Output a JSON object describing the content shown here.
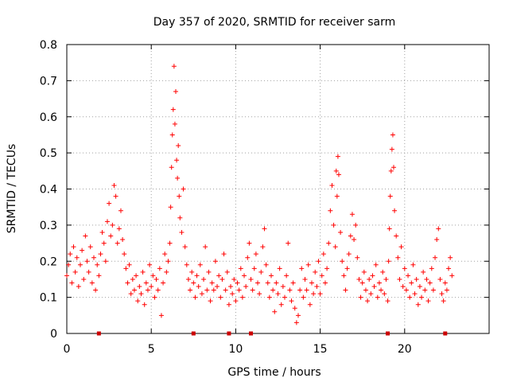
{
  "chart_data": {
    "type": "scatter",
    "title": "Day 357 of 2020, SRMTID for receiver sarm",
    "xlabel": "GPS time / hours",
    "ylabel": "SRMTID / TECUs",
    "xlim": [
      0,
      25
    ],
    "ylim": [
      0,
      0.8
    ],
    "x_ticks": [
      0,
      5,
      10,
      15,
      20
    ],
    "x_tick_labels": [
      "0",
      "5",
      "10",
      "15",
      "20"
    ],
    "y_ticks": [
      0,
      0.1,
      0.2,
      0.3,
      0.4,
      0.5,
      0.6,
      0.7,
      0.8
    ],
    "y_tick_labels": [
      "0",
      "0.1",
      "0.2",
      "0.3",
      "0.4",
      "0.5",
      "0.6",
      "0.7",
      "0.8"
    ],
    "grid": true,
    "marker": "plus",
    "series": [
      {
        "name": "SRMTID",
        "color": "#ff0000",
        "points": [
          [
            0.0,
            0.16
          ],
          [
            0.1,
            0.19
          ],
          [
            0.2,
            0.22
          ],
          [
            0.3,
            0.14
          ],
          [
            0.4,
            0.24
          ],
          [
            0.5,
            0.17
          ],
          [
            0.6,
            0.21
          ],
          [
            0.7,
            0.13
          ],
          [
            0.8,
            0.19
          ],
          [
            0.9,
            0.23
          ],
          [
            1.0,
            0.15
          ],
          [
            1.1,
            0.27
          ],
          [
            1.2,
            0.2
          ],
          [
            1.3,
            0.17
          ],
          [
            1.4,
            0.24
          ],
          [
            1.5,
            0.14
          ],
          [
            1.6,
            0.21
          ],
          [
            1.7,
            0.12
          ],
          [
            1.8,
            0.19
          ],
          [
            1.9,
            0.16
          ],
          [
            2.0,
            0.22
          ],
          [
            2.1,
            0.28
          ],
          [
            2.2,
            0.25
          ],
          [
            2.3,
            0.2
          ],
          [
            2.4,
            0.31
          ],
          [
            2.5,
            0.36
          ],
          [
            2.6,
            0.27
          ],
          [
            2.7,
            0.3
          ],
          [
            2.8,
            0.41
          ],
          [
            2.9,
            0.38
          ],
          [
            3.0,
            0.25
          ],
          [
            3.1,
            0.29
          ],
          [
            3.2,
            0.34
          ],
          [
            3.3,
            0.26
          ],
          [
            3.4,
            0.22
          ],
          [
            3.5,
            0.18
          ],
          [
            3.6,
            0.14
          ],
          [
            3.7,
            0.19
          ],
          [
            3.8,
            0.11
          ],
          [
            3.9,
            0.15
          ],
          [
            4.0,
            0.12
          ],
          [
            4.1,
            0.16
          ],
          [
            4.2,
            0.09
          ],
          [
            4.3,
            0.13
          ],
          [
            4.4,
            0.11
          ],
          [
            4.5,
            0.17
          ],
          [
            4.6,
            0.08
          ],
          [
            4.7,
            0.14
          ],
          [
            4.8,
            0.12
          ],
          [
            4.9,
            0.19
          ],
          [
            5.0,
            0.13
          ],
          [
            5.1,
            0.16
          ],
          [
            5.2,
            0.1
          ],
          [
            5.3,
            0.15
          ],
          [
            5.4,
            0.12
          ],
          [
            5.5,
            0.18
          ],
          [
            5.6,
            0.05
          ],
          [
            5.7,
            0.14
          ],
          [
            5.8,
            0.22
          ],
          [
            5.9,
            0.17
          ],
          [
            6.0,
            0.2
          ],
          [
            6.1,
            0.25
          ],
          [
            6.15,
            0.35
          ],
          [
            6.2,
            0.46
          ],
          [
            6.25,
            0.55
          ],
          [
            6.3,
            0.62
          ],
          [
            6.35,
            0.74
          ],
          [
            6.4,
            0.58
          ],
          [
            6.45,
            0.67
          ],
          [
            6.5,
            0.48
          ],
          [
            6.55,
            0.43
          ],
          [
            6.6,
            0.52
          ],
          [
            6.65,
            0.38
          ],
          [
            6.7,
            0.32
          ],
          [
            6.8,
            0.28
          ],
          [
            6.9,
            0.4
          ],
          [
            7.0,
            0.24
          ],
          [
            7.1,
            0.19
          ],
          [
            7.2,
            0.15
          ],
          [
            7.3,
            0.12
          ],
          [
            7.4,
            0.17
          ],
          [
            7.5,
            0.14
          ],
          [
            7.6,
            0.1
          ],
          [
            7.7,
            0.16
          ],
          [
            7.8,
            0.13
          ],
          [
            7.9,
            0.19
          ],
          [
            8.0,
            0.11
          ],
          [
            8.1,
            0.15
          ],
          [
            8.2,
            0.24
          ],
          [
            8.3,
            0.12
          ],
          [
            8.4,
            0.17
          ],
          [
            8.5,
            0.09
          ],
          [
            8.6,
            0.14
          ],
          [
            8.7,
            0.12
          ],
          [
            8.8,
            0.2
          ],
          [
            8.9,
            0.13
          ],
          [
            9.0,
            0.16
          ],
          [
            9.1,
            0.1
          ],
          [
            9.2,
            0.15
          ],
          [
            9.3,
            0.22
          ],
          [
            9.4,
            0.12
          ],
          [
            9.5,
            0.17
          ],
          [
            9.6,
            0.08
          ],
          [
            9.7,
            0.13
          ],
          [
            9.8,
            0.11
          ],
          [
            9.9,
            0.15
          ],
          [
            10.0,
            0.09
          ],
          [
            10.1,
            0.14
          ],
          [
            10.2,
            0.12
          ],
          [
            10.3,
            0.18
          ],
          [
            10.4,
            0.1
          ],
          [
            10.5,
            0.16
          ],
          [
            10.6,
            0.13
          ],
          [
            10.7,
            0.21
          ],
          [
            10.8,
            0.25
          ],
          [
            10.9,
            0.15
          ],
          [
            11.0,
            0.12
          ],
          [
            11.1,
            0.18
          ],
          [
            11.2,
            0.22
          ],
          [
            11.3,
            0.14
          ],
          [
            11.4,
            0.11
          ],
          [
            11.5,
            0.17
          ],
          [
            11.6,
            0.24
          ],
          [
            11.7,
            0.29
          ],
          [
            11.8,
            0.19
          ],
          [
            11.9,
            0.14
          ],
          [
            12.0,
            0.1
          ],
          [
            12.1,
            0.16
          ],
          [
            12.2,
            0.12
          ],
          [
            12.3,
            0.06
          ],
          [
            12.4,
            0.14
          ],
          [
            12.5,
            0.11
          ],
          [
            12.6,
            0.18
          ],
          [
            12.7,
            0.08
          ],
          [
            12.8,
            0.13
          ],
          [
            12.9,
            0.1
          ],
          [
            13.0,
            0.16
          ],
          [
            13.1,
            0.25
          ],
          [
            13.2,
            0.12
          ],
          [
            13.3,
            0.09
          ],
          [
            13.4,
            0.14
          ],
          [
            13.5,
            0.07
          ],
          [
            13.6,
            0.03
          ],
          [
            13.7,
            0.05
          ],
          [
            13.8,
            0.12
          ],
          [
            13.9,
            0.18
          ],
          [
            14.0,
            0.1
          ],
          [
            14.1,
            0.15
          ],
          [
            14.2,
            0.12
          ],
          [
            14.3,
            0.19
          ],
          [
            14.4,
            0.08
          ],
          [
            14.5,
            0.14
          ],
          [
            14.6,
            0.11
          ],
          [
            14.7,
            0.17
          ],
          [
            14.8,
            0.13
          ],
          [
            14.9,
            0.2
          ],
          [
            15.0,
            0.11
          ],
          [
            15.1,
            0.16
          ],
          [
            15.2,
            0.22
          ],
          [
            15.3,
            0.14
          ],
          [
            15.4,
            0.18
          ],
          [
            15.5,
            0.25
          ],
          [
            15.6,
            0.34
          ],
          [
            15.7,
            0.41
          ],
          [
            15.8,
            0.3
          ],
          [
            15.9,
            0.24
          ],
          [
            15.95,
            0.45
          ],
          [
            16.0,
            0.38
          ],
          [
            16.05,
            0.49
          ],
          [
            16.1,
            0.44
          ],
          [
            16.2,
            0.28
          ],
          [
            16.3,
            0.2
          ],
          [
            16.4,
            0.16
          ],
          [
            16.5,
            0.12
          ],
          [
            16.6,
            0.18
          ],
          [
            16.7,
            0.22
          ],
          [
            16.8,
            0.27
          ],
          [
            16.9,
            0.33
          ],
          [
            17.0,
            0.26
          ],
          [
            17.1,
            0.3
          ],
          [
            17.2,
            0.21
          ],
          [
            17.3,
            0.15
          ],
          [
            17.4,
            0.1
          ],
          [
            17.5,
            0.14
          ],
          [
            17.6,
            0.17
          ],
          [
            17.7,
            0.12
          ],
          [
            17.8,
            0.09
          ],
          [
            17.9,
            0.15
          ],
          [
            18.0,
            0.11
          ],
          [
            18.1,
            0.16
          ],
          [
            18.2,
            0.13
          ],
          [
            18.3,
            0.19
          ],
          [
            18.4,
            0.1
          ],
          [
            18.5,
            0.14
          ],
          [
            18.6,
            0.12
          ],
          [
            18.7,
            0.17
          ],
          [
            18.8,
            0.11
          ],
          [
            18.9,
            0.15
          ],
          [
            19.0,
            0.09
          ],
          [
            19.05,
            0.2
          ],
          [
            19.1,
            0.29
          ],
          [
            19.15,
            0.38
          ],
          [
            19.2,
            0.45
          ],
          [
            19.25,
            0.51
          ],
          [
            19.3,
            0.55
          ],
          [
            19.35,
            0.46
          ],
          [
            19.4,
            0.34
          ],
          [
            19.5,
            0.27
          ],
          [
            19.6,
            0.21
          ],
          [
            19.7,
            0.15
          ],
          [
            19.8,
            0.24
          ],
          [
            19.9,
            0.13
          ],
          [
            20.0,
            0.18
          ],
          [
            20.1,
            0.12
          ],
          [
            20.2,
            0.16
          ],
          [
            20.3,
            0.1
          ],
          [
            20.4,
            0.14
          ],
          [
            20.5,
            0.19
          ],
          [
            20.6,
            0.11
          ],
          [
            20.7,
            0.15
          ],
          [
            20.8,
            0.08
          ],
          [
            20.9,
            0.13
          ],
          [
            21.0,
            0.1
          ],
          [
            21.1,
            0.17
          ],
          [
            21.2,
            0.12
          ],
          [
            21.3,
            0.15
          ],
          [
            21.4,
            0.09
          ],
          [
            21.5,
            0.14
          ],
          [
            21.6,
            0.18
          ],
          [
            21.7,
            0.12
          ],
          [
            21.8,
            0.21
          ],
          [
            21.9,
            0.26
          ],
          [
            22.0,
            0.29
          ],
          [
            22.1,
            0.15
          ],
          [
            22.2,
            0.11
          ],
          [
            22.3,
            0.09
          ],
          [
            22.4,
            0.14
          ],
          [
            22.5,
            0.12
          ],
          [
            22.6,
            0.18
          ],
          [
            22.7,
            0.21
          ],
          [
            22.8,
            0.16
          ]
        ]
      }
    ],
    "baseline_markers": {
      "color": "#cc0000",
      "x": [
        1.9,
        7.5,
        9.6,
        10.9,
        19.0,
        22.4
      ]
    }
  }
}
